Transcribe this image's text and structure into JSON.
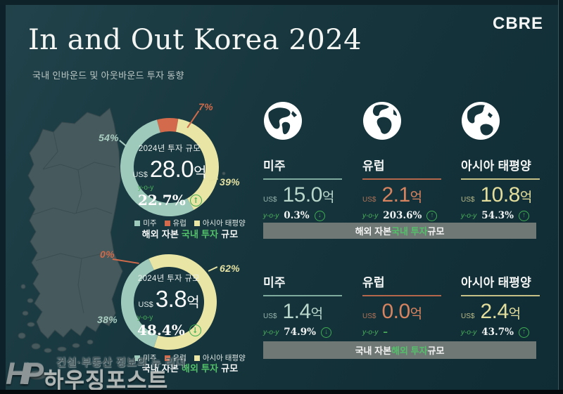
{
  "header": {
    "title": "In and Out Korea 2024",
    "subtitle": "국내 인바운드 및 아웃바운드 투자 동향",
    "brand": "CBRE"
  },
  "colors": {
    "background": "#16343c",
    "teal": "#9ecabb",
    "orange": "#d26a4b",
    "yellow": "#e9e5a4",
    "green": "#3fae52",
    "bar_gray": "#6f7875",
    "map_gray": "#46595c"
  },
  "chart_data": [
    {
      "type": "pie",
      "title": "해외 자본 국내 투자 규모",
      "center_title": "2024년 투자 규모",
      "currency": "US$",
      "value": "28.0",
      "unit": "억",
      "yoy_label": "y-o-y",
      "yoy_value": "22.7%",
      "yoy_arrow": "↑",
      "start_angle": -15,
      "slices": [
        {
          "label": "유럽",
          "pct": 7,
          "pct_label": "7%",
          "color": "#d26a4b"
        },
        {
          "label": "아시아 태평양",
          "pct": 39,
          "pct_label": "39%",
          "color": "#e9e5a4"
        },
        {
          "label": "미주",
          "pct": 54,
          "pct_label": "54%",
          "color": "#9ecabb"
        }
      ],
      "legend": [
        {
          "label": "미주",
          "color": "#9ecabb"
        },
        {
          "label": "유럽",
          "color": "#d26a4b"
        },
        {
          "label": "아시아 태평양",
          "color": "#e9e5a4"
        }
      ],
      "caption": {
        "pre": "해외 자본 ",
        "highlight": "국내 투자",
        "post": " 규모"
      }
    },
    {
      "type": "pie",
      "title": "국내 자본 해외 투자 규모",
      "center_title": "2024년 투자 규모",
      "currency": "US$",
      "value": "3.8",
      "unit": "억",
      "yoy_label": "y-o-y",
      "yoy_value": "48.4%",
      "yoy_arrow": "↓",
      "start_angle": -25,
      "slices": [
        {
          "label": "아시아 태평양",
          "pct": 62,
          "pct_label": "62%",
          "color": "#e9e5a4"
        },
        {
          "label": "미주",
          "pct": 38,
          "pct_label": "38%",
          "color": "#9ecabb"
        },
        {
          "label": "유럽",
          "pct": 0,
          "pct_label": "0%",
          "color": "#d26a4b"
        }
      ],
      "legend": [
        {
          "label": "미주",
          "color": "#9ecabb"
        },
        {
          "label": "유럽",
          "color": "#d26a4b"
        },
        {
          "label": "아시아 태평양",
          "color": "#e9e5a4"
        }
      ],
      "caption": {
        "pre": "국내 자본 ",
        "highlight": "해외 투자",
        "post": " 규모"
      }
    }
  ],
  "sections": [
    {
      "bar": {
        "pre": "해외 자본 ",
        "highlight": "국내 투자",
        "post": " 규모"
      },
      "stats": [
        {
          "region": "미주",
          "currency": "US$",
          "value": "15.0",
          "unit": "억",
          "yoy_label": "y-o-y",
          "yoy": "0.3%",
          "arrow": "↓"
        },
        {
          "region": "유럽",
          "currency": "US$",
          "value": "2.1",
          "unit": "억",
          "yoy_label": "y-o-y",
          "yoy": "203.6%",
          "arrow": "↑"
        },
        {
          "region": "아시아 태평양",
          "currency": "US$",
          "value": "10.8",
          "unit": "억",
          "yoy_label": "y-o-y",
          "yoy": "54.3%",
          "arrow": "↑"
        }
      ]
    },
    {
      "bar": {
        "pre": "국내 자본 ",
        "highlight": "해외 투자",
        "post": " 규모"
      },
      "stats": [
        {
          "region": "미주",
          "currency": "US$",
          "value": "1.4",
          "unit": "억",
          "yoy_label": "y-o-y",
          "yoy": "74.9%",
          "arrow": "↓"
        },
        {
          "region": "유럽",
          "currency": "US$",
          "value": "0.0",
          "unit": "억",
          "yoy_label": "y-o-y",
          "yoy": "–",
          "arrow": ""
        },
        {
          "region": "아시아 태평양",
          "currency": "US$",
          "value": "2.4",
          "unit": "억",
          "yoy_label": "y-o-y",
          "yoy": "43.7%",
          "arrow": "↑"
        }
      ]
    }
  ],
  "watermark": {
    "logo": "HP",
    "tagline": "건설·부동산 정보의 뉴 리더",
    "name": "하우징포스트"
  }
}
